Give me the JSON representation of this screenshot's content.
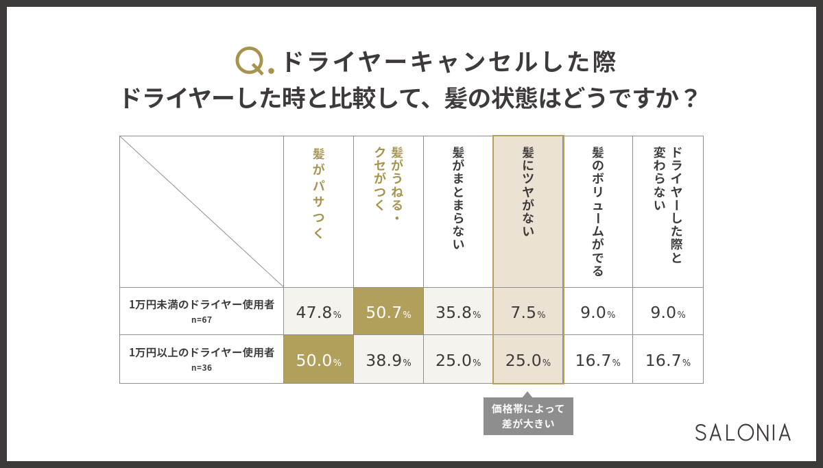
{
  "title": {
    "q_prefix": "Q.",
    "line1": "ドライヤーキャンセルした際",
    "line2": "ドライヤーした時と比較して、髪の状態はどうですか？",
    "accent_color": "#a6934e",
    "text_color": "#3e3a39"
  },
  "chart_data": {
    "type": "table",
    "title": "Q.ドライヤーキャンセルした際 ドライヤーした時と比較して、髪の状態はどうですか？",
    "unit": "%",
    "columns": [
      {
        "label": "髪がパサつく",
        "lines": [
          "髪がパサつく"
        ],
        "text_color": "gold"
      },
      {
        "label": "髪がうねる・クセがつく",
        "lines": [
          "髪がうねる・",
          "クセがつく"
        ],
        "text_color": "gold"
      },
      {
        "label": "髪がまとまらない",
        "lines": [
          "髪がまとまらない"
        ],
        "text_color": "dark"
      },
      {
        "label": "髪にツヤがない",
        "lines": [
          "髪にツヤがない"
        ],
        "text_color": "dark",
        "column_highlight": true
      },
      {
        "label": "髪のボリュームがでる",
        "lines": [
          "髪のボリュームがでる"
        ],
        "text_color": "dark"
      },
      {
        "label": "ドライヤーした際と変わらない",
        "lines": [
          "ドライヤーした際と",
          "変わらない"
        ],
        "text_color": "dark"
      }
    ],
    "rows": [
      {
        "label": "1万円未満のドライヤー使用者",
        "n": "n=67",
        "values": [
          "47.8",
          "50.7",
          "35.8",
          "7.5",
          "9.0",
          "9.0"
        ],
        "emphasized_value_index": 1
      },
      {
        "label": "1万円以上のドライヤー使用者",
        "n": "n=36",
        "values": [
          "50.0",
          "38.9",
          "25.0",
          "25.0",
          "16.7",
          "16.7"
        ],
        "emphasized_value_index": 0
      }
    ],
    "highlighted_column_index": 3,
    "colors": {
      "gold_cell": "#b1a05c",
      "gold_text": "#a6934e",
      "beige_column": "#eae3d3",
      "offwhite_cell": "#f5f3ed",
      "grid_line": "#8f8f8f",
      "gold_outline": "#b49e62",
      "dark": "#3e3a39"
    }
  },
  "callout": {
    "line1": "価格帯によって",
    "line2": "差が大きい",
    "background": "#8e8e8e",
    "text_color": "#ffffff",
    "points_to_column": "髪にツヤがない"
  },
  "logo": {
    "brand": "SALONIA"
  },
  "frame": {
    "border_color": "#3e3a39",
    "background": "#ffffff"
  }
}
